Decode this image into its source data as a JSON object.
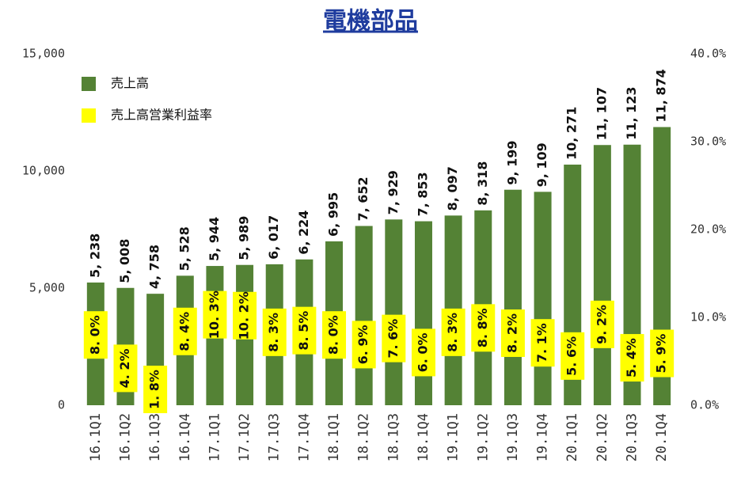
{
  "chart_data": {
    "type": "bar",
    "title": "電機部品",
    "categories": [
      "16.1Q1",
      "16.1Q2",
      "16.1Q3",
      "16.1Q4",
      "17.1Q1",
      "17.1Q2",
      "17.1Q3",
      "17.1Q4",
      "18.1Q1",
      "18.1Q2",
      "18.1Q3",
      "18.1Q4",
      "19.1Q1",
      "19.1Q2",
      "19.1Q3",
      "19.1Q4",
      "20.1Q1",
      "20.1Q2",
      "20.1Q3",
      "20.1Q4"
    ],
    "series": [
      {
        "name": "売上高",
        "color": "#548235",
        "axis": "y",
        "values": [
          5238,
          5008,
          4758,
          5528,
          5944,
          5989,
          6017,
          6224,
          6995,
          7652,
          7929,
          7853,
          8097,
          8318,
          9199,
          9109,
          10271,
          11107,
          11123,
          11874
        ],
        "value_labels": [
          "5, 238",
          "5, 008",
          "4, 758",
          "5, 528",
          "5, 944",
          "5, 989",
          "6, 017",
          "6, 224",
          "6, 995",
          "7, 652",
          "7, 929",
          "7, 853",
          "8, 097",
          "8, 318",
          "9, 199",
          "9, 109",
          "10, 271",
          "11, 107",
          "11, 123",
          "11, 874"
        ]
      },
      {
        "name": "売上高営業利益率",
        "color": "#ffff00",
        "axis": "y2",
        "values": [
          8.0,
          4.2,
          1.8,
          8.4,
          10.3,
          10.2,
          8.3,
          8.5,
          8.0,
          6.9,
          7.6,
          6.0,
          8.3,
          8.8,
          8.2,
          7.1,
          5.6,
          9.2,
          5.4,
          5.9
        ],
        "value_labels": [
          "8. 0%",
          "4. 2%",
          "1. 8%",
          "8. 4%",
          "10. 3%",
          "10. 2%",
          "8. 3%",
          "8. 5%",
          "8. 0%",
          "6. 9%",
          "7. 6%",
          "6. 0%",
          "8. 3%",
          "8. 8%",
          "8. 2%",
          "7. 1%",
          "5. 6%",
          "9. 2%",
          "5. 4%",
          "5. 9%"
        ]
      }
    ],
    "ylim": [
      0,
      15000
    ],
    "yticks": [
      0,
      {
        "value": 5000,
        "label": "5,000"
      },
      {
        "value": 10000,
        "label": "10,000"
      },
      {
        "value": 15000,
        "label": "15,000"
      }
    ],
    "y2lim": [
      0,
      40
    ],
    "y2ticks": [
      {
        "value": 0,
        "label": "0.0%"
      },
      {
        "value": 10,
        "label": "10.0%"
      },
      {
        "value": 20,
        "label": "20.0%"
      },
      {
        "value": 30,
        "label": "30.0%"
      },
      {
        "value": 40,
        "label": "40.0%"
      }
    ],
    "legend": "top-left"
  }
}
